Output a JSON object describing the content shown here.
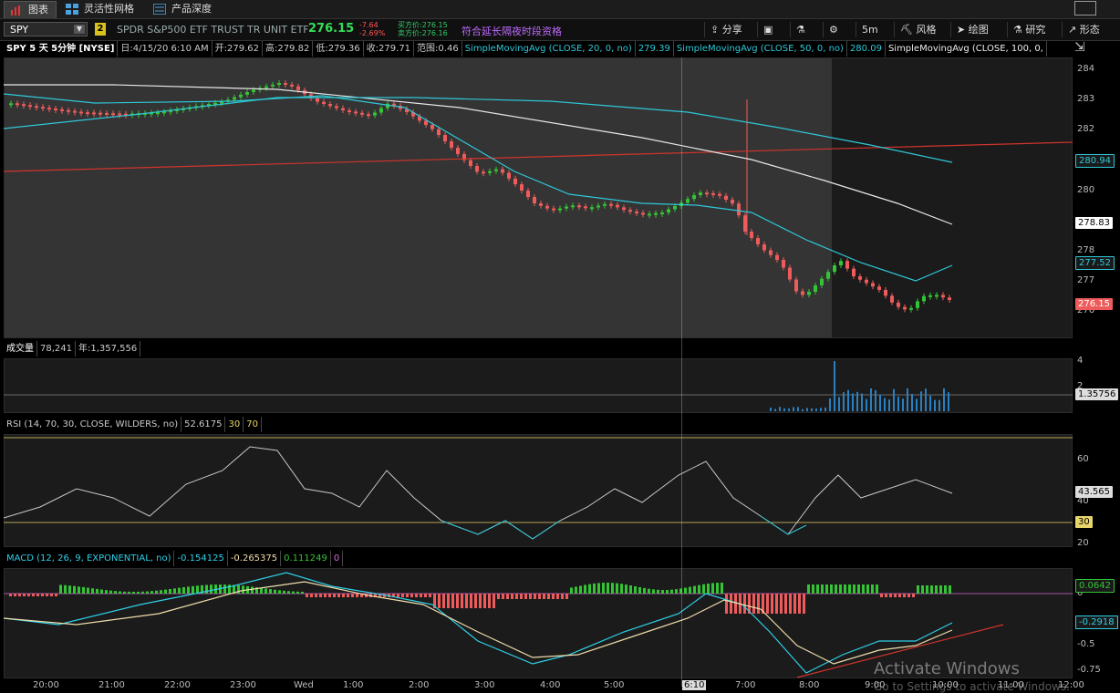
{
  "tabs": [
    {
      "label": "图表",
      "active": true
    },
    {
      "label": "灵活性网格",
      "active": false
    },
    {
      "label": "产品深度",
      "active": false
    }
  ],
  "toolbar": {
    "symbol": "SPY",
    "link_badge": "2",
    "description": "SPDR S&P500 ETF TRUST TR UNIT ETF",
    "last": "276.15",
    "net_change": "-7.64",
    "pct_change": "-2.69%",
    "bid": "买方价:276.15",
    "ask": "卖方价:276.16",
    "extended_hours": "符合延长隔夜时段资格",
    "share": "分享",
    "period": "5m",
    "style": "风格",
    "drawings": "绘图",
    "studies": "研究",
    "patterns": "形态"
  },
  "price_header": {
    "title": "SPY 5 天 5分钟 [NYSE]",
    "date": "日:4/15/20 6:10 AM",
    "open": "开:279.62",
    "high": "高:279.82",
    "low": "低:279.36",
    "close": "收:279.71",
    "range": "范围:0.46",
    "sma20_label": "SimpleMovingAvg (CLOSE, 20, 0, no)",
    "sma20_value": "279.39",
    "sma50_label": "SimpleMovingAvg (CLOSE, 50, 0, no)",
    "sma50_value": "280.09",
    "sma100_label": "SimpleMovingAvg (CLOSE, 100, 0,"
  },
  "price_axis": {
    "ticks": [
      "284",
      "283",
      "282",
      "281",
      "280",
      "279",
      "278",
      "277",
      "276"
    ],
    "tag_sma50": "280.94",
    "tag_sma100": "278.83",
    "tag_sma20": "277.52",
    "tag_last": "276.15"
  },
  "volume_header": {
    "title": "成交量",
    "value": "78,241",
    "year": "年:1,357,556"
  },
  "volume_axis": {
    "ticks": [
      "4",
      "2"
    ],
    "tag": "1.35756"
  },
  "rsi_header": {
    "label": "RSI (14, 70, 30, CLOSE, WILDERS, no)",
    "value": "52.6175",
    "oversold": "30",
    "overbought": "70"
  },
  "rsi_axis": {
    "ticks": [
      "60",
      "40",
      "20"
    ],
    "tag_value": "43.565",
    "tag_level": "30"
  },
  "macd_header": {
    "label": "MACD (12, 26, 9, EXPONENTIAL, no)",
    "value": "-0.154125",
    "avg": "-0.265375",
    "diff": "0.111249",
    "zero": "0"
  },
  "macd_axis": {
    "ticks": [
      "0",
      "-0.5",
      "-0.75"
    ],
    "tag_hist": "0.0642",
    "tag_macd": "-0.2918"
  },
  "time_axis": [
    "20:00",
    "21:00",
    "22:00",
    "23:00",
    "Wed",
    "1:00",
    "2:00",
    "3:00",
    "4:00",
    "5:00",
    "6:10",
    "7:00",
    "8:00",
    "9:00",
    "10:00",
    "11:00",
    "12:00"
  ],
  "watermark": {
    "title": "Activate Windows",
    "sub": "Go to Settings to activate Windows."
  },
  "colors": {
    "up": "#34c435",
    "down": "#ef5b5b",
    "sma": "#2ec8d8",
    "sma100": "#e8e8e8",
    "trend": "#d0342c",
    "rsi": "#c8c8c8",
    "macd": "#2ed0e8",
    "macd_avg": "#eedcaa"
  }
}
